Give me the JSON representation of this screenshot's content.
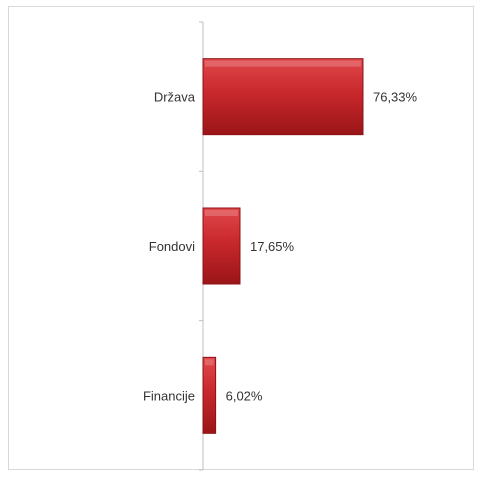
{
  "chart_data": {
    "type": "bar",
    "orientation": "horizontal",
    "categories": [
      "Država",
      "Fondovi",
      "Financije"
    ],
    "values": [
      76.33,
      17.65,
      6.02
    ],
    "value_labels": [
      "76,33%",
      "17,65%",
      "6,02%"
    ],
    "title": "",
    "xlabel": "",
    "ylabel": "",
    "xlim": [
      0,
      100
    ],
    "grid": false,
    "legend": "none",
    "bar_color": "#c0282d"
  }
}
